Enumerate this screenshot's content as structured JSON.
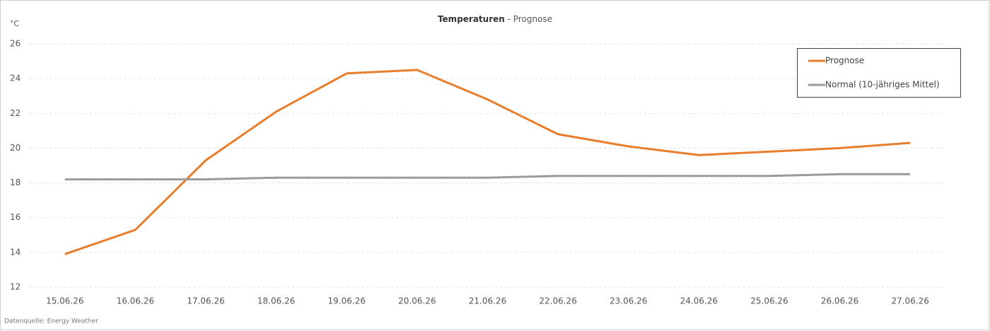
{
  "chart_data": {
    "type": "line",
    "title": "Temperaturen",
    "subtitle": "- Prognose",
    "y_label": "°C",
    "source": "Datenquelle: Energy Weather",
    "categories": [
      "15.06.26",
      "16.06.26",
      "17.06.26",
      "18.06.26",
      "19.06.26",
      "20.06.26",
      "21.06.26",
      "22.06.26",
      "23.06.26",
      "24.06.26",
      "25.06.26",
      "26.06.26",
      "27.06.26"
    ],
    "series": [
      {
        "name": "Prognose",
        "color": "#e87e2c",
        "values": [
          13.9,
          15.3,
          19.3,
          22.1,
          24.3,
          24.5,
          22.8,
          20.8,
          20.1,
          19.6,
          19.8,
          20.0,
          20.3
        ]
      },
      {
        "name": "Normal (10-jähriges Mittel)",
        "color": "#9a9a9a",
        "values": [
          18.2,
          18.2,
          18.2,
          18.3,
          18.3,
          18.3,
          18.3,
          18.4,
          18.4,
          18.4,
          18.4,
          18.5,
          18.5
        ]
      }
    ],
    "ylim": [
      12,
      26
    ],
    "yticks": [
      12,
      14,
      16,
      18,
      20,
      22,
      24,
      26
    ],
    "grid": true,
    "legend": "top-right"
  }
}
